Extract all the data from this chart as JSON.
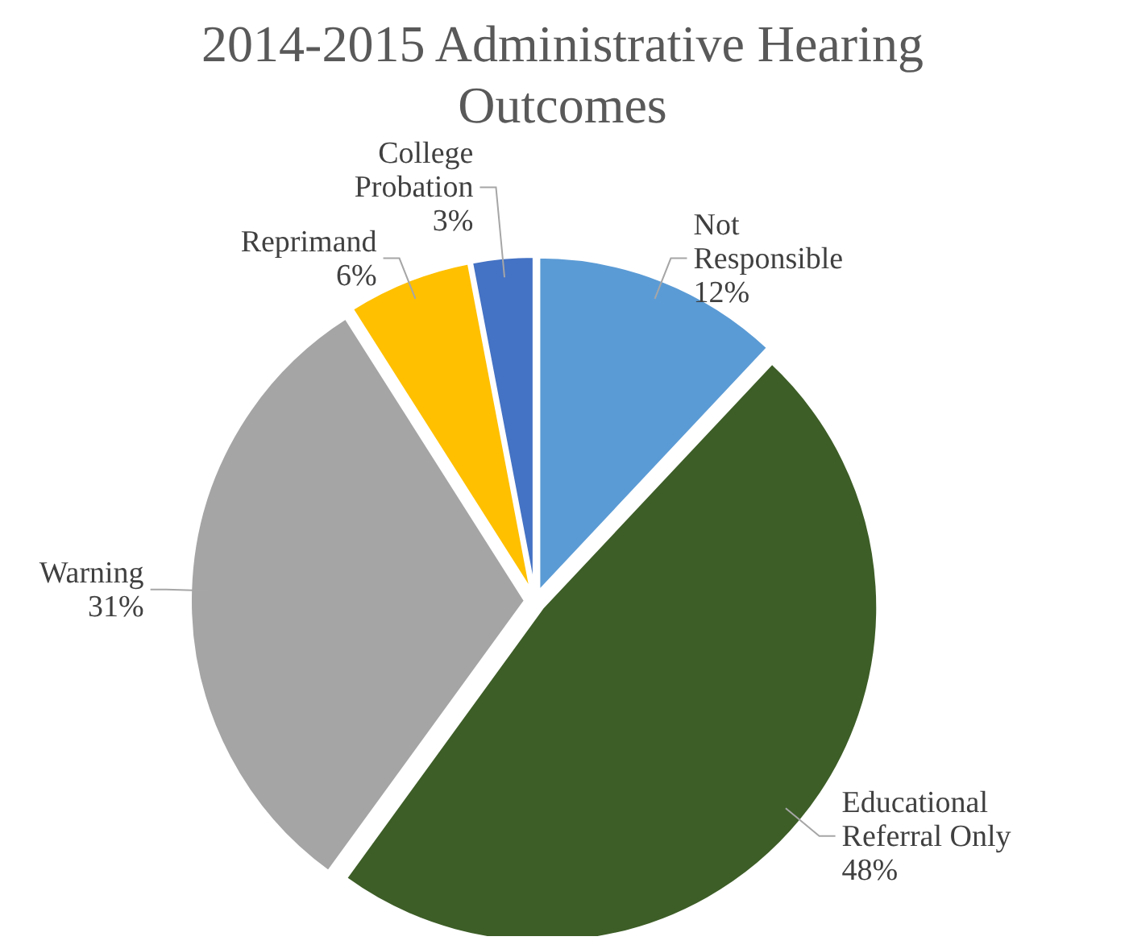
{
  "chart_data": {
    "type": "pie",
    "title": "2014-2015 Administrative Hearing Outcomes",
    "categories": [
      "Not Responsible",
      "Educational Referral Only",
      "Warning",
      "Reprimand",
      "College Probation"
    ],
    "values": [
      12,
      48,
      31,
      6,
      3
    ],
    "value_labels": [
      "12%",
      "48%",
      "31%",
      "6%",
      "3%"
    ],
    "colors": [
      "#5b9bd5",
      "#3d5e27",
      "#a5a5a5",
      "#ffc000",
      "#4472c4"
    ],
    "legend": false
  }
}
